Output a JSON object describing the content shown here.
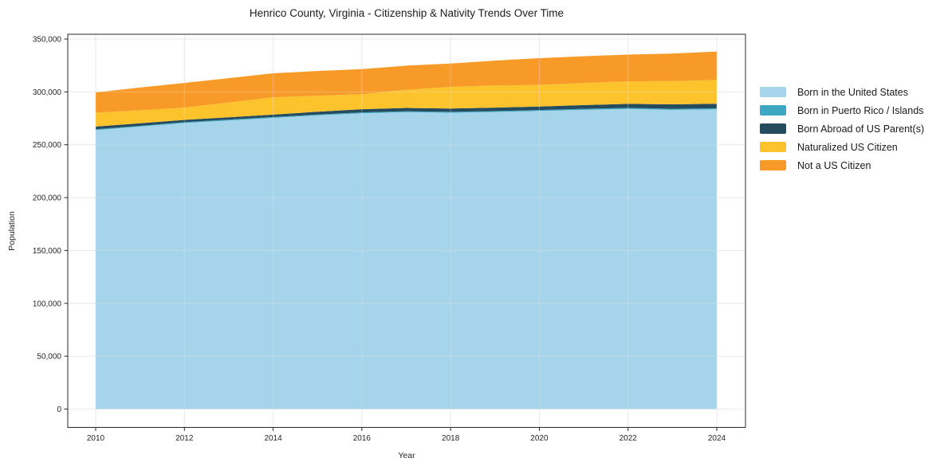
{
  "chart_data": {
    "type": "area",
    "stacked": true,
    "title": "Henrico County, Virginia - Citizenship & Nativity Trends Over Time",
    "xlabel": "Year",
    "ylabel": "Population",
    "grid": true,
    "legend_position": "right",
    "x": [
      2010,
      2011,
      2012,
      2013,
      2014,
      2015,
      2016,
      2017,
      2018,
      2019,
      2020,
      2021,
      2022,
      2023,
      2024
    ],
    "xticks": [
      2010,
      2012,
      2014,
      2016,
      2018,
      2020,
      2022,
      2024
    ],
    "yticks": [
      0,
      50000,
      100000,
      150000,
      200000,
      250000,
      300000,
      350000
    ],
    "ylim": [
      0,
      350000
    ],
    "series": [
      {
        "id": "born-in-us",
        "name": "Born in the United States",
        "color": "#a6d4ea",
        "values": [
          263900,
          267200,
          270600,
          273000,
          275400,
          277800,
          279800,
          280800,
          280200,
          281000,
          282000,
          283000,
          283900,
          283000,
          283500
        ]
      },
      {
        "id": "born-in-puerto-rico-islands",
        "name": "Born in Puerto Rico / Islands",
        "color": "#3ea8c2",
        "values": [
          700,
          700,
          700,
          800,
          800,
          800,
          800,
          900,
          900,
          900,
          900,
          1000,
          1000,
          1000,
          1000
        ]
      },
      {
        "id": "born-abroad-us-parents",
        "name": "Born Abroad of US Parent(s)",
        "color": "#254b5e",
        "values": [
          2600,
          2400,
          2200,
          2200,
          2300,
          2600,
          3000,
          3100,
          3200,
          3200,
          3200,
          3500,
          3800,
          4200,
          4300
        ]
      },
      {
        "id": "naturalized-us-citizen",
        "name": "Naturalized US Citizen",
        "color": "#fdc32d",
        "values": [
          13100,
          12300,
          11600,
          13900,
          16400,
          15200,
          14200,
          17200,
          20500,
          21000,
          20600,
          21000,
          21300,
          22000,
          22500
        ]
      },
      {
        "id": "not-a-us-citizen",
        "name": "Not a US Citizen",
        "color": "#f89a28",
        "values": [
          19200,
          21500,
          23400,
          23100,
          22700,
          23400,
          23800,
          22800,
          22100,
          23500,
          25200,
          25200,
          25300,
          26000,
          26900
        ]
      }
    ]
  }
}
